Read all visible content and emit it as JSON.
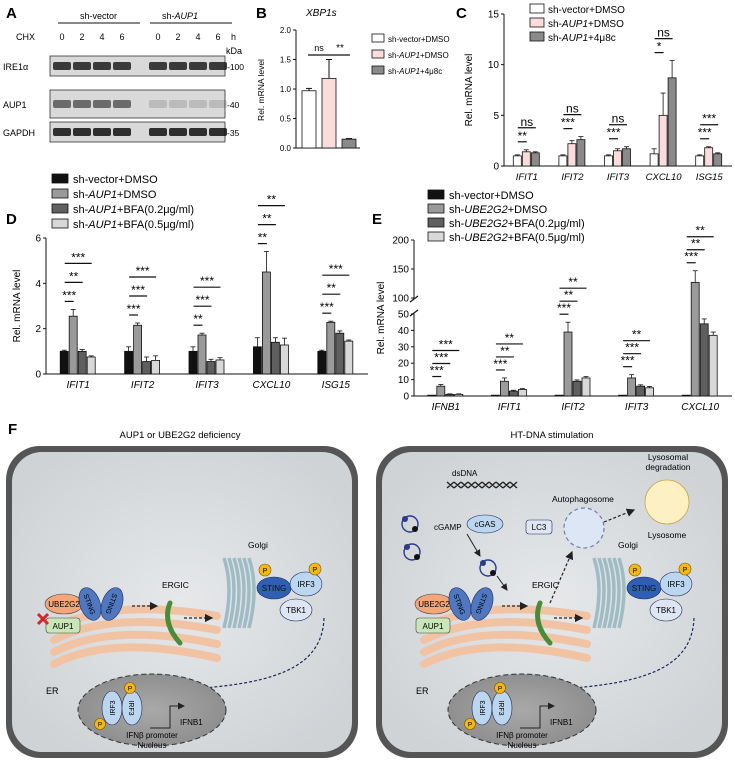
{
  "panels": {
    "A": {
      "letter": "A",
      "group_left": "sh-vector",
      "group_right_prefix": "sh-",
      "group_right_gene": "AUP1",
      "row_label": "CHX",
      "time_unit": "h",
      "timepoints": [
        "0",
        "2",
        "4",
        "6",
        "0",
        "2",
        "4",
        "6"
      ],
      "kda_label": "kDa",
      "blots": [
        {
          "name": "IRE1α",
          "marker": "-100"
        },
        {
          "name": "AUP1",
          "marker": "-40"
        },
        {
          "name": "GAPDH",
          "marker": "-35"
        }
      ]
    },
    "B": {
      "letter": "B",
      "title": "XBP1s",
      "ylabel": "Rel. mRNA level",
      "legend": [
        "sh-vector+DMSO",
        "sh-AUP1+DMSO",
        "sh-AUP1+4μ8c"
      ],
      "annotations": [
        "ns",
        "**"
      ]
    },
    "C": {
      "letter": "C"
    },
    "D": {
      "letter": "D"
    },
    "E": {
      "letter": "E"
    },
    "F": {
      "letter": "F",
      "left_title": "AUP1 or UBE2G2 deficiency",
      "right_title": "HT-DNA stimulation",
      "labels": {
        "ube2g2": "UBE2G2",
        "aup1": "AUP1",
        "sting": "STING",
        "ergic": "ERGIC",
        "golgi": "Golgi",
        "irf3": "IRF3",
        "tbk1": "TBK1",
        "er": "ER",
        "p": "P",
        "ifnb1": "IFNB1",
        "promoter": "IFNβ promoter",
        "nucleus": "Nucleus",
        "dsdna": "dsDNA",
        "cgas": "cGAS",
        "cgamp": "cGAMP",
        "lc3": "LC3",
        "autophagosome": "Autophagosome",
        "lysosomal": "Lysosomal",
        "degradation": "degradation",
        "lysosome": "Lysosome"
      }
    }
  },
  "chart_data": [
    {
      "id": "B",
      "type": "bar",
      "title": "XBP1s",
      "ylabel": "Rel. mRNA level",
      "ylim": [
        0,
        2.0
      ],
      "yticks": [
        "0.0",
        "0.5",
        "1.0",
        "1.5",
        "2.0"
      ],
      "categories": [
        "sh-vector+DMSO",
        "sh-AUP1+DMSO",
        "sh-AUP1+4μ8c"
      ],
      "values": [
        0.97,
        1.18,
        0.15
      ],
      "errors": [
        0.04,
        0.32,
        0.01
      ],
      "colors": [
        "#ffffff",
        "#fbdcdc",
        "#8a8a8a"
      ]
    },
    {
      "id": "C",
      "type": "bar",
      "ylabel": "Rel. mRNA level",
      "ylim": [
        0,
        15
      ],
      "yticks": [
        "0",
        "5",
        "10",
        "15"
      ],
      "categories": [
        "IFIT1",
        "IFIT2",
        "IFIT3",
        "CXCL10",
        "ISG15"
      ],
      "series": [
        {
          "name": "sh-vector+DMSO",
          "color": "#ffffff",
          "values": [
            1.0,
            1.0,
            1.0,
            1.2,
            1.0
          ],
          "errors": [
            0.1,
            0.1,
            0.1,
            0.5,
            0.1
          ]
        },
        {
          "name": "sh-AUP1+DMSO",
          "color": "#fbdcdc",
          "values": [
            1.4,
            2.2,
            1.5,
            5.0,
            1.8
          ],
          "errors": [
            0.2,
            0.3,
            0.2,
            2.2,
            0.1
          ]
        },
        {
          "name": "sh-AUP1+4μ8c",
          "color": "#8a8a8a",
          "values": [
            1.3,
            2.6,
            1.7,
            8.7,
            1.2
          ],
          "errors": [
            0.1,
            0.3,
            0.2,
            1.7,
            0.1
          ]
        }
      ],
      "sig": [
        [
          "**",
          "ns"
        ],
        [
          "***",
          "ns"
        ],
        [
          "***",
          "ns"
        ],
        [
          "*",
          "ns"
        ],
        [
          "***",
          "***"
        ]
      ]
    },
    {
      "id": "D",
      "type": "bar",
      "ylabel": "Rel. mRNA level",
      "ylim": [
        0,
        6
      ],
      "yticks": [
        "0",
        "2",
        "4",
        "6"
      ],
      "categories": [
        "IFIT1",
        "IFIT2",
        "IFIT3",
        "CXCL10",
        "ISG15"
      ],
      "series": [
        {
          "name": "sh-vector+DMSO",
          "color": "#111111",
          "values": [
            1.0,
            1.0,
            1.0,
            1.2,
            1.0
          ],
          "errors": [
            0.05,
            0.2,
            0.2,
            0.4,
            0.05
          ]
        },
        {
          "name": "sh-AUP1+DMSO",
          "color": "#9a9a9a",
          "values": [
            2.55,
            2.15,
            1.72,
            4.5,
            2.28
          ],
          "errors": [
            0.3,
            0.1,
            0.08,
            0.9,
            0.05
          ]
        },
        {
          "name": "sh-AUP1+BFA(0.2μg/ml)",
          "color": "#5f5f5f",
          "values": [
            1.0,
            0.55,
            0.55,
            1.4,
            1.8
          ],
          "errors": [
            0.08,
            0.2,
            0.1,
            0.2,
            0.1
          ]
        },
        {
          "name": "sh-AUP1+BFA(0.5μg/ml)",
          "color": "#d8d8d8",
          "values": [
            0.75,
            0.6,
            0.62,
            1.28,
            1.45
          ],
          "errors": [
            0.05,
            0.2,
            0.1,
            0.3,
            0.05
          ]
        }
      ],
      "sig": [
        [
          "***",
          "**",
          "***"
        ],
        [
          "***",
          "***",
          "***"
        ],
        [
          "**",
          "***",
          "***"
        ],
        [
          "**",
          "**",
          "**"
        ],
        [
          "***",
          "**",
          "***"
        ]
      ]
    },
    {
      "id": "E",
      "type": "bar",
      "ylabel": "Rel. mRNA level",
      "ylim": [
        0,
        200
      ],
      "yticks": [
        "0",
        "10",
        "20",
        "30",
        "40",
        "50",
        "100",
        "150",
        "200"
      ],
      "categories": [
        "IFNB1",
        "IFIT1",
        "IFIT2",
        "IFIT3",
        "CXCL10"
      ],
      "series": [
        {
          "name": "sh-vector+DMSO",
          "color": "#111111",
          "values": [
            0.5,
            0.5,
            0.5,
            0.5,
            0.5
          ],
          "errors": [
            0,
            0,
            0,
            0,
            0
          ]
        },
        {
          "name": "sh-UBE2G2+DMSO",
          "color": "#9a9a9a",
          "values": [
            6,
            9,
            39,
            11,
            127
          ],
          "errors": [
            1,
            2,
            6,
            2,
            20
          ]
        },
        {
          "name": "sh-UBE2G2+BFA(0.2μg/ml)",
          "color": "#5f5f5f",
          "values": [
            1,
            3,
            9,
            6,
            44
          ],
          "errors": [
            0.3,
            0.5,
            0.8,
            0.8,
            3
          ]
        },
        {
          "name": "sh-UBE2G2+BFA(0.5μg/ml)",
          "color": "#d8d8d8",
          "values": [
            1,
            4,
            11,
            5,
            37
          ],
          "errors": [
            0.3,
            0.5,
            0.8,
            0.8,
            2
          ]
        }
      ],
      "sig": [
        [
          "***",
          "***",
          "***"
        ],
        [
          "***",
          "**",
          "**"
        ],
        [
          "***",
          "**",
          "**"
        ],
        [
          "***",
          "***",
          "**"
        ],
        [
          "***",
          "**",
          "**"
        ]
      ]
    }
  ]
}
